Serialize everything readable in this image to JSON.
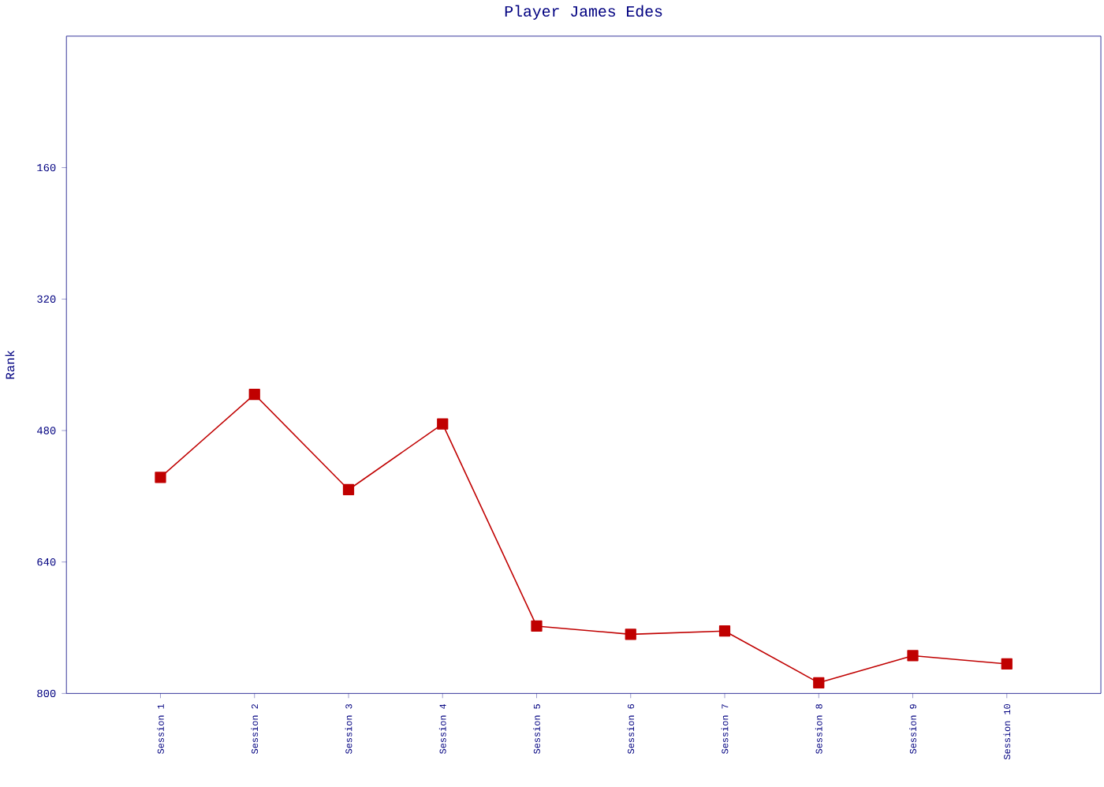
{
  "chart_data": {
    "type": "line",
    "title": "Player James Edes",
    "ylabel": "Rank",
    "categories": [
      "Session 1",
      "Session 2",
      "Session 3",
      "Session 4",
      "Session 5",
      "Session 6",
      "Session 7",
      "Session 8",
      "Session 9",
      "Session 10"
    ],
    "series": [
      {
        "color": "#c00000",
        "values": [
          537,
          436,
          552,
          472,
          718,
          728,
          724,
          787,
          754,
          764
        ]
      }
    ],
    "ylim": [
      800,
      0
    ],
    "yticks": [
      160,
      320,
      480,
      640,
      800
    ],
    "marker": "square",
    "line_style": "solid"
  }
}
